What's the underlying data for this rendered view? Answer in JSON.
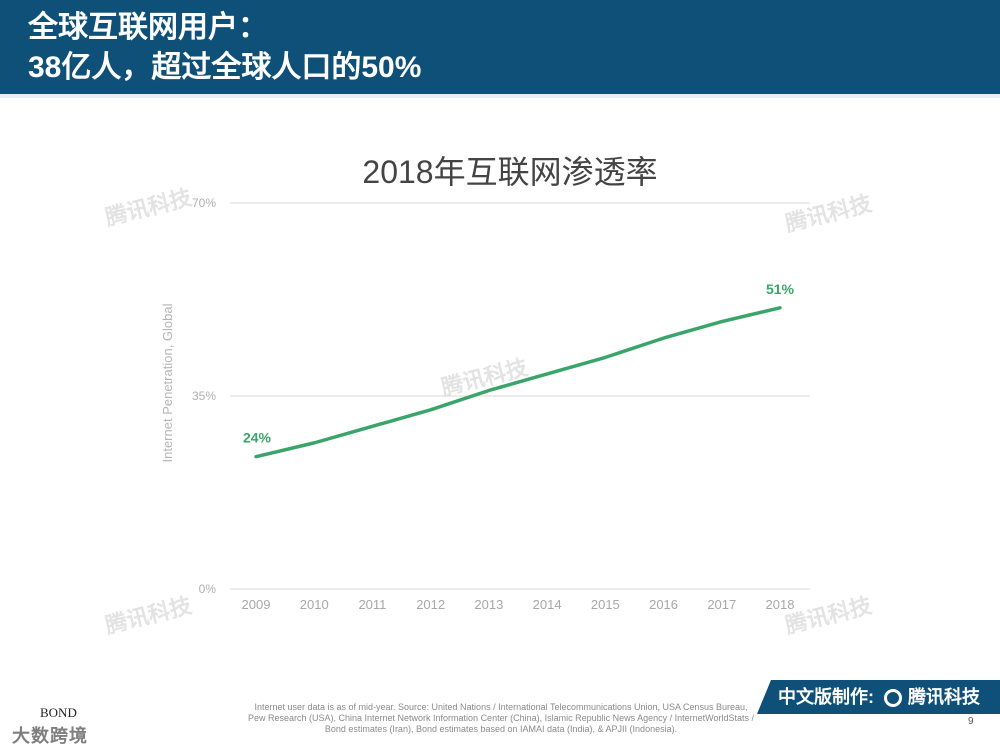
{
  "header": {
    "line1": "全球互联网用户：",
    "line2": "38亿人，超过全球人口的50%"
  },
  "chart_data": {
    "type": "line",
    "title": "2018年互联网渗透率",
    "ylabel": "Internet Penetration, Global",
    "xlabel": "",
    "x": [
      "2009",
      "2010",
      "2011",
      "2012",
      "2013",
      "2014",
      "2015",
      "2016",
      "2017",
      "2018"
    ],
    "series": [
      {
        "values": [
          24,
          26.5,
          29.5,
          32.5,
          36,
          39,
          42,
          45.5,
          48.5,
          51
        ],
        "color": "#3aa56a"
      }
    ],
    "ylim": [
      0,
      70
    ],
    "yticks": [
      "0%",
      "35%",
      "70%"
    ],
    "yticks_values": [
      0,
      35,
      70
    ],
    "data_labels": [
      {
        "index": 0,
        "text": "24%"
      },
      {
        "index": 9,
        "text": "51%"
      }
    ],
    "grid": "horizontal"
  },
  "footer": {
    "source": "Internet user data is as of mid-year.  Source: United Nations / International Telecommunications Union, USA Census Bureau, Pew Research (USA), China Internet Network Information Center (China), Islamic Republic News Agency / InternetWorldStats / Bond estimates (Iran), Bond estimates based on IAMAI data (India), & APJII (Indonesia).",
    "bond_logo": "BOND",
    "watermark": "大数跨境",
    "brand_label": "中文版制作:",
    "brand_name": "腾讯科技",
    "page_number": "9"
  },
  "watermarks": {
    "text": "腾讯科技"
  }
}
